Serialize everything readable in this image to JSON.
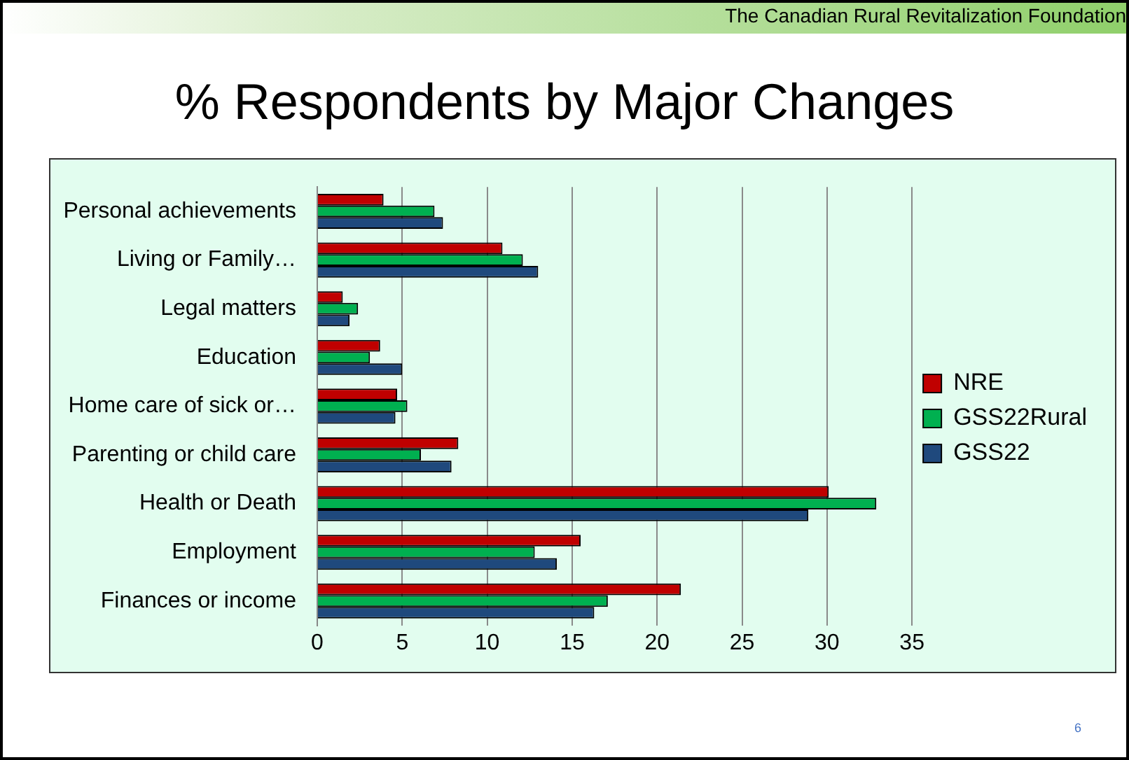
{
  "chart_data": {
    "type": "bar",
    "orientation": "horizontal",
    "title": "% Respondents by Major Changes",
    "annotations": [
      "The Canadian Rural Revitalization Foundation",
      "6"
    ],
    "categories": [
      "Personal achievements",
      "Living or Family…",
      "Legal matters",
      "Education",
      "Home care of sick or…",
      "Parenting or child care",
      "Health or Death",
      "Employment",
      "Finances or income"
    ],
    "series": [
      {
        "name": "NRE",
        "color": "#c00000",
        "values": [
          3.9,
          10.9,
          1.5,
          3.7,
          4.7,
          8.3,
          30.1,
          15.5,
          21.4
        ]
      },
      {
        "name": "GSS22Rural",
        "color": "#00b050",
        "values": [
          6.9,
          12.1,
          2.4,
          3.1,
          5.3,
          6.1,
          32.9,
          12.8,
          17.1
        ]
      },
      {
        "name": "GSS22",
        "color": "#1f497d",
        "values": [
          7.4,
          13.0,
          1.9,
          5.0,
          4.6,
          7.9,
          28.9,
          14.1,
          16.3
        ]
      }
    ],
    "xlim": [
      0,
      35
    ],
    "xticks": [
      0,
      5,
      10,
      15,
      20,
      25,
      30,
      35
    ],
    "grid": "x",
    "legend": "right"
  }
}
